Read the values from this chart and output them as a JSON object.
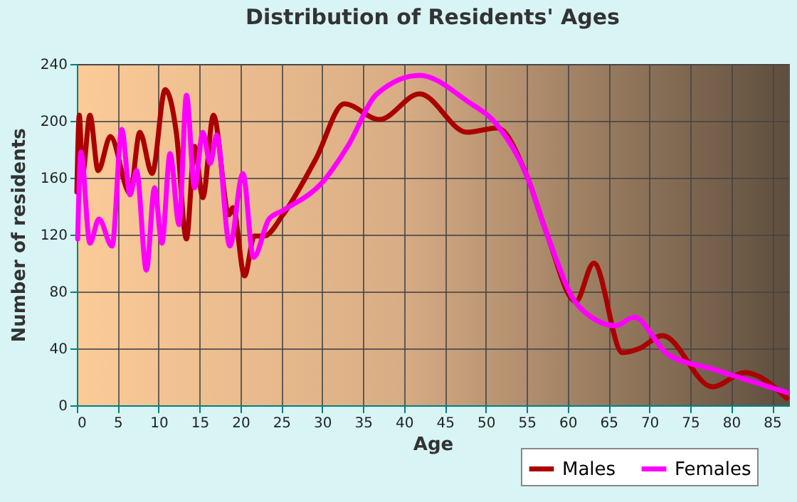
{
  "chart_data": {
    "type": "line",
    "title": "Distribution of Residents' Ages",
    "xlabel": "Age",
    "ylabel": "Number of residents",
    "xlim": [
      0,
      87
    ],
    "xticks": [
      0,
      5,
      10,
      15,
      20,
      25,
      30,
      35,
      40,
      45,
      50,
      55,
      60,
      65,
      70,
      75,
      80,
      85
    ],
    "ylim": [
      0,
      240
    ],
    "yticks": [
      0,
      40,
      80,
      120,
      160,
      200,
      240
    ],
    "grid": true,
    "legend": "bottom",
    "marker": "none",
    "line_style": "solid",
    "series": [
      {
        "name": "Males",
        "color": "#aa0000",
        "x": [
          0,
          0.3,
          0.7,
          1.6,
          2.6,
          4.1,
          6.5,
          7.7,
          9.2,
          10.8,
          12.2,
          13.4,
          14.4,
          15.4,
          16.7,
          18.6,
          19.1,
          20.5,
          21.7,
          22.9,
          25.2,
          29.2,
          32.7,
          37.0,
          41.9,
          47.7,
          51.4,
          54.9,
          57.5,
          61.0,
          63.2,
          66.7,
          68.8,
          71.6,
          77.7,
          81.7,
          86.8
        ],
        "values": [
          150,
          204,
          163,
          204,
          165,
          189,
          149,
          192,
          163,
          222,
          190,
          117,
          182,
          146,
          204,
          134,
          139,
          91,
          119,
          119,
          134,
          173,
          212,
          201,
          219,
          192,
          195,
          163,
          120,
          73,
          100,
          37,
          40,
          49,
          13,
          23,
          5
        ]
      },
      {
        "name": "Females",
        "color": "#ff00ff",
        "x": [
          0.1,
          0.5,
          1.6,
          2.7,
          4.3,
          5.5,
          6.5,
          7.3,
          8.5,
          9.5,
          10.4,
          11.4,
          12.5,
          13.4,
          14.4,
          15.4,
          16.3,
          17.1,
          18.7,
          20.3,
          21.6,
          23.5,
          25.2,
          30.2,
          33.1,
          36.7,
          41.9,
          47.7,
          51.4,
          54.9,
          57.5,
          61.3,
          65.9,
          68.1,
          72.2,
          78.0,
          86.8
        ],
        "values": [
          117,
          178,
          114,
          131,
          112,
          194,
          148,
          165,
          95,
          153,
          114,
          177,
          127,
          218,
          153,
          192,
          170,
          190,
          112,
          163,
          104,
          131,
          137,
          158,
          182,
          219,
          232,
          214,
          197,
          163,
          120,
          70,
          56,
          62,
          36,
          25,
          9
        ]
      }
    ]
  }
}
